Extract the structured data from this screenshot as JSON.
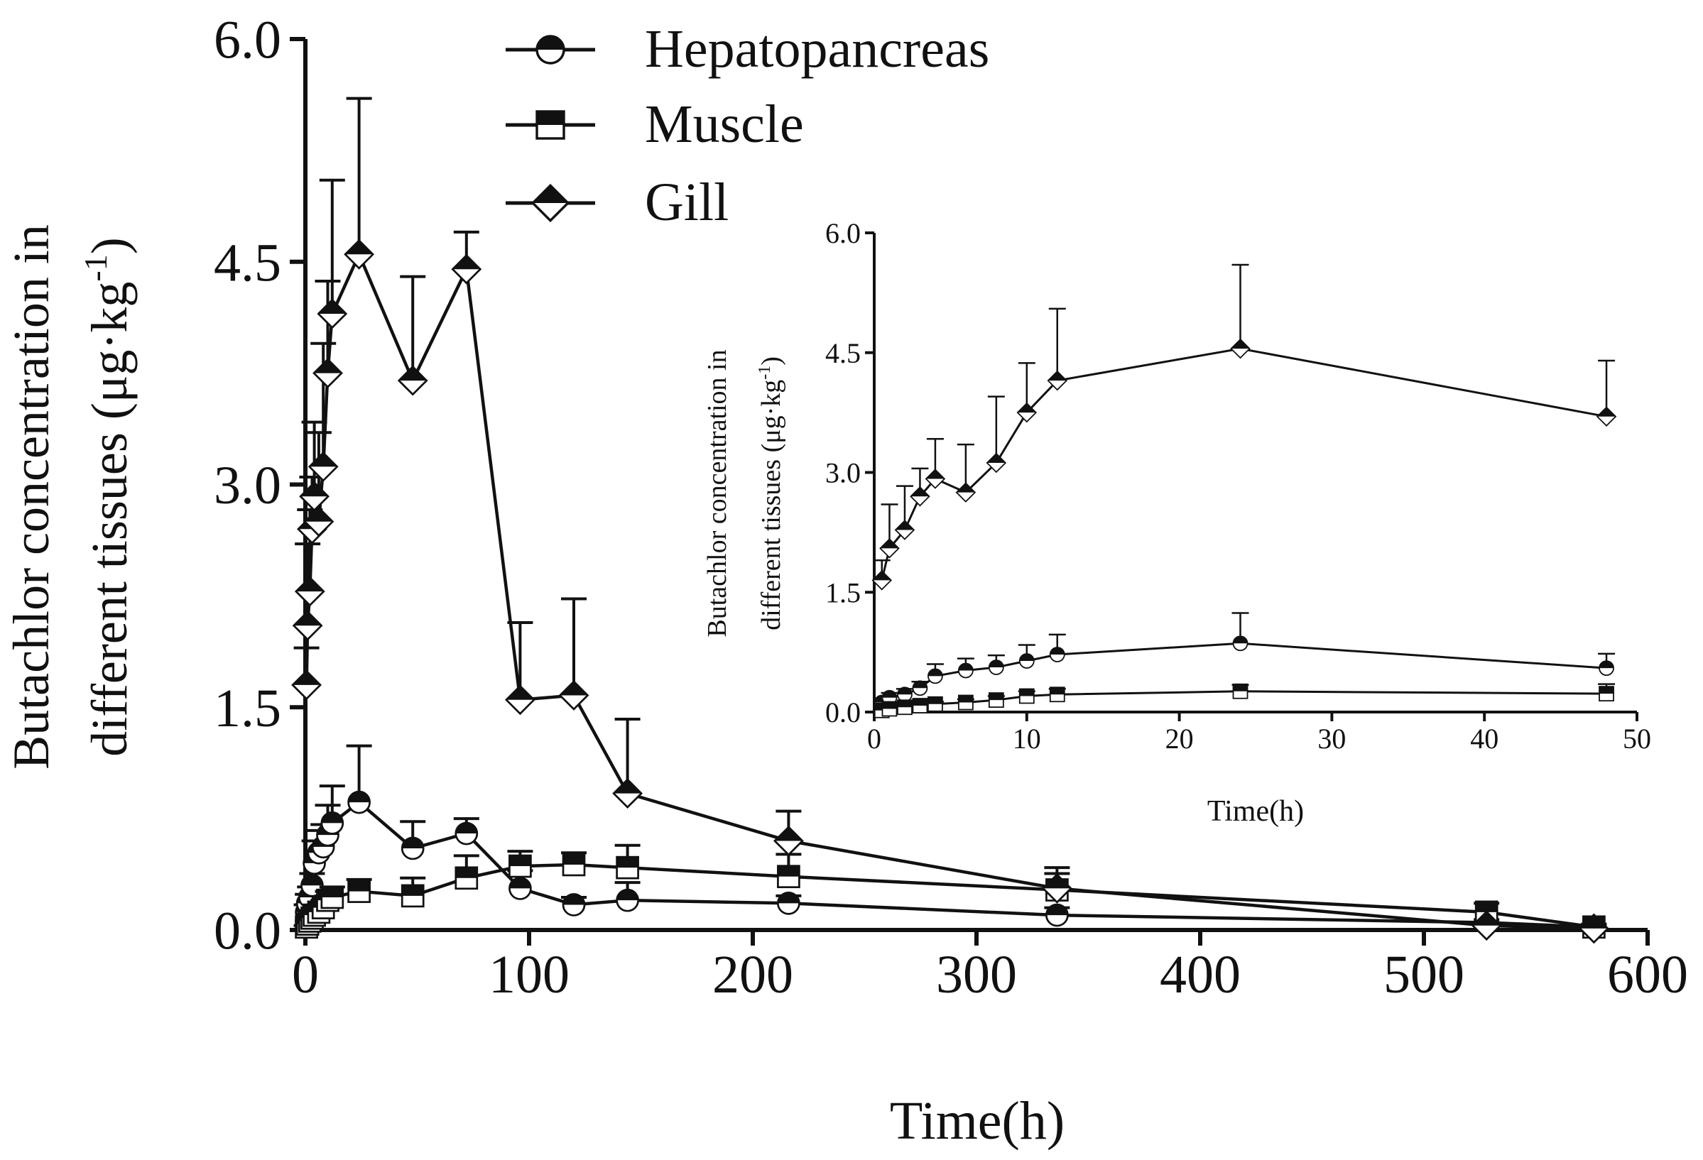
{
  "chart_data": [
    {
      "id": "main",
      "type": "line",
      "title": "",
      "xlabel": "Time(h)",
      "ylabel_line1": "Butachlor concentration in",
      "ylabel_line2_prefix": "different tissues (μg·kg",
      "ylabel_sup": "-1",
      "ylabel_suffix": ")",
      "xlim": [
        0,
        600
      ],
      "ylim": [
        0,
        6
      ],
      "xticks": [
        0,
        100,
        200,
        300,
        400,
        500,
        600
      ],
      "xtick_labels": [
        "0",
        "100",
        "200",
        "300",
        "400",
        "500",
        "600"
      ],
      "yticks": [
        0,
        1.5,
        3,
        4.5,
        6
      ],
      "ytick_labels": [
        "0.0",
        "1.5",
        "3.0",
        "4.5",
        "6.0"
      ],
      "legend_position": "top-center",
      "series": [
        {
          "name": "Hepatopancreas",
          "marker": "circle-half",
          "x": [
            0.5,
            1,
            2,
            3,
            4,
            6,
            8,
            10,
            12,
            24,
            48,
            72,
            96,
            120,
            144,
            216,
            336,
            528,
            576
          ],
          "y": [
            0.12,
            0.18,
            0.22,
            0.3,
            0.45,
            0.52,
            0.56,
            0.64,
            0.72,
            0.86,
            0.55,
            0.65,
            0.28,
            0.17,
            0.2,
            0.18,
            0.1,
            0.05,
            0.02
          ],
          "err": [
            0.05,
            0.06,
            0.07,
            0.08,
            0.15,
            0.15,
            0.15,
            0.2,
            0.25,
            0.38,
            0.18,
            0.1,
            0.12,
            0.05,
            0.12,
            0.05,
            0.05,
            0.02,
            0.01
          ]
        },
        {
          "name": "Muscle",
          "marker": "square-half",
          "x": [
            0.5,
            1,
            2,
            3,
            4,
            6,
            8,
            10,
            12,
            24,
            48,
            72,
            96,
            120,
            144,
            216,
            336,
            528,
            576
          ],
          "y": [
            0.02,
            0.04,
            0.06,
            0.08,
            0.1,
            0.12,
            0.15,
            0.2,
            0.22,
            0.26,
            0.23,
            0.35,
            0.43,
            0.44,
            0.42,
            0.36,
            0.27,
            0.12,
            0.02
          ],
          "err": [
            0.01,
            0.02,
            0.02,
            0.03,
            0.03,
            0.04,
            0.05,
            0.06,
            0.07,
            0.08,
            0.12,
            0.15,
            0.1,
            0.08,
            0.15,
            0.15,
            0.15,
            0.06,
            0.02
          ]
        },
        {
          "name": "Gill",
          "marker": "diamond-half",
          "x": [
            0.5,
            1,
            2,
            3,
            4,
            6,
            8,
            10,
            12,
            24,
            48,
            72,
            96,
            120,
            144,
            216,
            336,
            528,
            576
          ],
          "y": [
            1.65,
            2.05,
            2.28,
            2.7,
            2.92,
            2.75,
            3.12,
            3.75,
            4.15,
            4.55,
            3.7,
            4.45,
            1.55,
            1.58,
            0.92,
            0.6,
            0.28,
            0.03,
            0.01
          ],
          "err": [
            0.25,
            0.55,
            0.55,
            0.35,
            0.5,
            0.6,
            0.83,
            0.62,
            0.9,
            1.05,
            0.7,
            0.25,
            0.52,
            0.65,
            0.5,
            0.2,
            0.1,
            0.02,
            0.01
          ]
        }
      ]
    },
    {
      "id": "inset",
      "type": "line",
      "title": "",
      "xlabel": "Time(h)",
      "ylabel_line1": "Butachlor concentration in",
      "ylabel_line2_prefix": "different tissues (μg·kg",
      "ylabel_sup": "-1",
      "ylabel_suffix": ")",
      "xlim": [
        0,
        50
      ],
      "ylim": [
        0,
        6
      ],
      "xticks": [
        0,
        10,
        20,
        30,
        40,
        50
      ],
      "xtick_labels": [
        "0",
        "10",
        "20",
        "30",
        "40",
        "50"
      ],
      "yticks": [
        0,
        1.5,
        3,
        4.5,
        6
      ],
      "ytick_labels": [
        "0.0",
        "1.5",
        "3.0",
        "4.5",
        "6.0"
      ],
      "series": [
        {
          "name": "Hepatopancreas",
          "marker": "circle-half",
          "x": [
            0.5,
            1,
            2,
            3,
            4,
            6,
            8,
            10,
            12,
            24,
            48
          ],
          "y": [
            0.12,
            0.18,
            0.22,
            0.3,
            0.45,
            0.52,
            0.56,
            0.64,
            0.72,
            0.86,
            0.55
          ],
          "err": [
            0.05,
            0.06,
            0.07,
            0.08,
            0.15,
            0.15,
            0.15,
            0.2,
            0.25,
            0.38,
            0.18
          ]
        },
        {
          "name": "Muscle",
          "marker": "square-half",
          "x": [
            0.5,
            1,
            2,
            3,
            4,
            6,
            8,
            10,
            12,
            24,
            48
          ],
          "y": [
            0.02,
            0.04,
            0.06,
            0.08,
            0.1,
            0.12,
            0.15,
            0.2,
            0.22,
            0.26,
            0.23
          ],
          "err": [
            0.01,
            0.02,
            0.02,
            0.03,
            0.03,
            0.04,
            0.05,
            0.06,
            0.07,
            0.08,
            0.12
          ]
        },
        {
          "name": "Gill",
          "marker": "diamond-half",
          "x": [
            0.5,
            1,
            2,
            3,
            4,
            6,
            8,
            10,
            12,
            24,
            48
          ],
          "y": [
            1.65,
            2.05,
            2.28,
            2.7,
            2.92,
            2.75,
            3.12,
            3.75,
            4.15,
            4.55,
            3.7
          ],
          "err": [
            0.25,
            0.55,
            0.55,
            0.35,
            0.5,
            0.6,
            0.83,
            0.62,
            0.9,
            1.05,
            0.7
          ]
        }
      ]
    }
  ]
}
